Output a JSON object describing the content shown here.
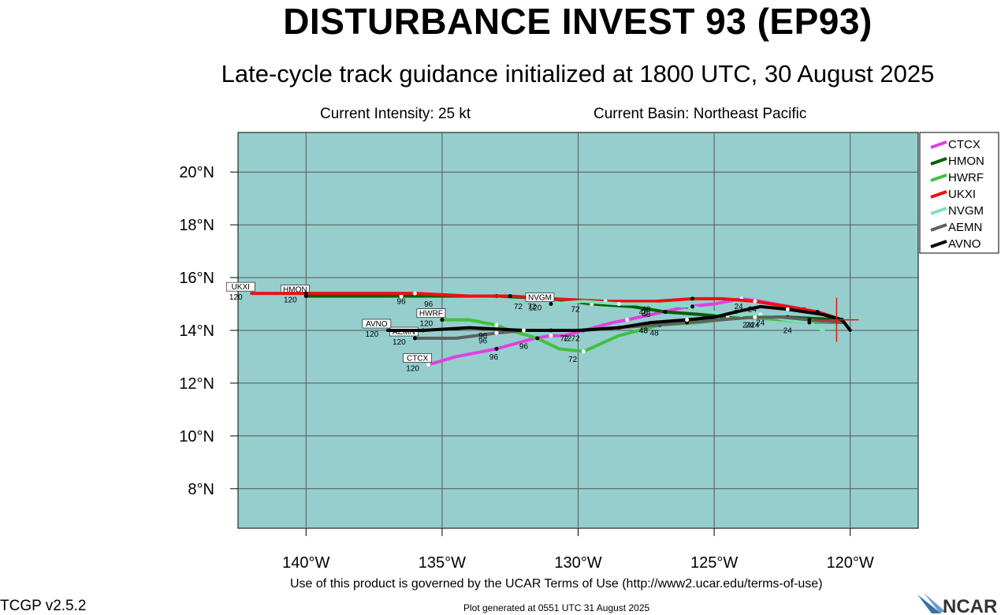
{
  "header": {
    "title": "DISTURBANCE INVEST 93 (EP93)",
    "subtitle": "Late-cycle track guidance initialized at 1800 UTC, 30 August 2025",
    "intensity": "Current Intensity: 25 kt",
    "basin": "Current Basin: Northeast Pacific"
  },
  "footer": {
    "terms": "Use of this product is governed by the UCAR Terms of Use (http://www2.ucar.edu/terms-of-use)",
    "version": "TCGP v2.5.2",
    "plot_generated": "Plot generated at 0551 UTC   31 August 2025",
    "logo_text": "NCAR"
  },
  "map": {
    "ocean_color": "#96cece",
    "lon_ticks": [
      -140,
      -135,
      -130,
      -125,
      -120
    ],
    "lon_labels": [
      "140°W",
      "135°W",
      "130°W",
      "125°W",
      "120°W"
    ],
    "lat_ticks": [
      8,
      10,
      12,
      14,
      16,
      18,
      20
    ],
    "lat_labels": [
      "8°N",
      "10°N",
      "12°N",
      "14°N",
      "16°N",
      "18°N",
      "20°N"
    ],
    "gridlines": "on",
    "current_position": {
      "lon": -120.5,
      "lat": 14.4
    }
  },
  "legend": {
    "placement": "right",
    "items": [
      {
        "name": "CTCX",
        "color": "#e040e0"
      },
      {
        "name": "HMON",
        "color": "#006000"
      },
      {
        "name": "HWRF",
        "color": "#40c040"
      },
      {
        "name": "UKXI",
        "color": "#ee1010"
      },
      {
        "name": "NVGM",
        "color": "#80e0c0"
      },
      {
        "name": "AEMN",
        "color": "#606060"
      },
      {
        "name": "AVNO",
        "color": "#000000"
      }
    ]
  },
  "tracks": [
    {
      "name": "CTCX",
      "color": "#e040e0",
      "end_label": "120",
      "points": [
        [
          -120.3,
          14.4
        ],
        [
          -121.7,
          14.8
        ],
        [
          -123.3,
          15.1
        ],
        [
          -124.0,
          15.2
        ],
        [
          -125.0,
          15.0
        ],
        [
          -126.0,
          14.9
        ],
        [
          -127.3,
          14.6
        ],
        [
          -128.2,
          14.4
        ],
        [
          -128.7,
          14.3
        ],
        [
          -129.8,
          14.0
        ],
        [
          -130.5,
          13.8
        ],
        [
          -131.0,
          13.8
        ],
        [
          -131.6,
          13.7
        ],
        [
          -133.0,
          13.3
        ],
        [
          -134.5,
          13.0
        ],
        [
          -135.5,
          12.7
        ]
      ],
      "labels": [
        {
          "lon": -124.1,
          "lat": 15.1,
          "text": "24"
        },
        {
          "lon": -126.6,
          "lat": 14.5,
          "text": "48"
        },
        {
          "lon": -130.1,
          "lat": 13.9,
          "text": "72"
        },
        {
          "lon": -133.1,
          "lat": 13.2,
          "text": "96"
        }
      ]
    },
    {
      "name": "HMON",
      "color": "#006000",
      "end_label": "120",
      "points": [
        [
          -120.3,
          14.4
        ],
        [
          -122.3,
          14.5
        ],
        [
          -123.5,
          14.5
        ],
        [
          -124.5,
          14.5
        ],
        [
          -125.5,
          14.6
        ],
        [
          -126.8,
          14.7
        ],
        [
          -128.0,
          14.9
        ],
        [
          -129.5,
          15.0
        ],
        [
          -131.0,
          15.2
        ],
        [
          -133.0,
          15.3
        ],
        [
          -134.5,
          15.3
        ],
        [
          -136.5,
          15.3
        ],
        [
          -138.0,
          15.3
        ],
        [
          -140.0,
          15.3
        ]
      ],
      "labels": [
        {
          "lon": -123.5,
          "lat": 14.4,
          "text": "24"
        },
        {
          "lon": -127.5,
          "lat": 14.8,
          "text": "48"
        },
        {
          "lon": -132.2,
          "lat": 15.1,
          "text": "72"
        },
        {
          "lon": -135.5,
          "lat": 15.2,
          "text": "96"
        }
      ]
    },
    {
      "name": "HWRF",
      "color": "#40c040",
      "end_label": "120",
      "points": [
        [
          -120.3,
          14.3
        ],
        [
          -121.5,
          14.3
        ],
        [
          -122.5,
          14.4
        ],
        [
          -124.0,
          14.5
        ],
        [
          -125.5,
          14.3
        ],
        [
          -127.0,
          14.2
        ],
        [
          -128.5,
          13.8
        ],
        [
          -129.8,
          13.2
        ],
        [
          -130.7,
          13.3
        ],
        [
          -131.5,
          13.7
        ],
        [
          -132.5,
          14.0
        ],
        [
          -133.0,
          14.2
        ],
        [
          -134.0,
          14.4
        ],
        [
          -135.0,
          14.4
        ]
      ],
      "labels": [
        {
          "lon": -122.3,
          "lat": 14.2,
          "text": "24"
        },
        {
          "lon": -127.2,
          "lat": 14.1,
          "text": "48"
        },
        {
          "lon": -130.2,
          "lat": 13.1,
          "text": "72"
        },
        {
          "lon": -132.0,
          "lat": 13.6,
          "text": "96"
        }
      ]
    },
    {
      "name": "UKXI",
      "color": "#ee1010",
      "end_label": "120",
      "points": [
        [
          -120.3,
          14.4
        ],
        [
          -121.2,
          14.7
        ],
        [
          -122.3,
          14.9
        ],
        [
          -123.5,
          15.1
        ],
        [
          -124.7,
          15.2
        ],
        [
          -125.8,
          15.2
        ],
        [
          -127.2,
          15.1
        ],
        [
          -129.0,
          15.1
        ],
        [
          -131.0,
          15.2
        ],
        [
          -132.5,
          15.3
        ],
        [
          -134.0,
          15.3
        ],
        [
          -136.0,
          15.4
        ],
        [
          -138.0,
          15.4
        ],
        [
          -140.0,
          15.4
        ],
        [
          -142.0,
          15.4
        ]
      ],
      "labels": [
        {
          "lon": -123.6,
          "lat": 15.0,
          "text": "24"
        },
        {
          "lon": -127.5,
          "lat": 15.0,
          "text": "48"
        },
        {
          "lon": -131.7,
          "lat": 15.1,
          "text": "72"
        },
        {
          "lon": -136.5,
          "lat": 15.3,
          "text": "96"
        }
      ]
    },
    {
      "name": "NVGM",
      "color": "#80e0c0",
      "end_label": "120",
      "points": [
        [
          -121.0,
          14.0
        ],
        [
          -121.5,
          14.3
        ],
        [
          -122.3,
          14.4
        ],
        [
          -123.3,
          14.6
        ],
        [
          -124.7,
          14.6
        ],
        [
          -125.8,
          14.9
        ],
        [
          -127.2,
          15.0
        ],
        [
          -128.5,
          15.0
        ],
        [
          -129.8,
          15.1
        ],
        [
          -131.0,
          15.0
        ]
      ],
      "labels": [
        {
          "lon": -123.3,
          "lat": 14.5,
          "text": "24"
        },
        {
          "lon": -127.6,
          "lat": 14.9,
          "text": "48"
        },
        {
          "lon": -130.1,
          "lat": 15.0,
          "text": "72"
        }
      ]
    },
    {
      "name": "AEMN",
      "color": "#606060",
      "end_label": "120",
      "points": [
        [
          -120.3,
          14.3
        ],
        [
          -121.5,
          14.4
        ],
        [
          -122.5,
          14.5
        ],
        [
          -123.5,
          14.5
        ],
        [
          -124.8,
          14.4
        ],
        [
          -126.0,
          14.3
        ],
        [
          -127.2,
          14.2
        ],
        [
          -128.5,
          14.1
        ],
        [
          -129.8,
          14.0
        ],
        [
          -131.0,
          14.0
        ],
        [
          -132.0,
          14.0
        ],
        [
          -133.0,
          13.9
        ],
        [
          -134.5,
          13.7
        ],
        [
          -136.0,
          13.7
        ]
      ],
      "labels": [
        {
          "lon": -123.8,
          "lat": 14.4,
          "text": "24"
        },
        {
          "lon": -127.6,
          "lat": 14.2,
          "text": "48"
        },
        {
          "lon": -130.4,
          "lat": 13.9,
          "text": "72"
        },
        {
          "lon": -133.5,
          "lat": 13.8,
          "text": "96"
        }
      ]
    },
    {
      "name": "AVNO",
      "color": "#000000",
      "end_label": "120",
      "points": [
        [
          -120.0,
          14.0
        ],
        [
          -120.3,
          14.4
        ],
        [
          -121.0,
          14.6
        ],
        [
          -122.3,
          14.8
        ],
        [
          -123.3,
          14.9
        ],
        [
          -124.2,
          14.7
        ],
        [
          -125.0,
          14.5
        ],
        [
          -126.0,
          14.4
        ],
        [
          -127.3,
          14.3
        ],
        [
          -128.5,
          14.1
        ],
        [
          -130.0,
          14.0
        ],
        [
          -132.0,
          14.0
        ],
        [
          -134.0,
          14.1
        ],
        [
          -135.7,
          14.0
        ],
        [
          -137.0,
          14.0
        ]
      ],
      "labels": [
        {
          "lon": -123.7,
          "lat": 14.4,
          "text": "24"
        },
        {
          "lon": -127.6,
          "lat": 14.2,
          "text": "48"
        },
        {
          "lon": -130.5,
          "lat": 13.9,
          "text": "72"
        },
        {
          "lon": -133.5,
          "lat": 14.0,
          "text": "96"
        }
      ]
    }
  ]
}
